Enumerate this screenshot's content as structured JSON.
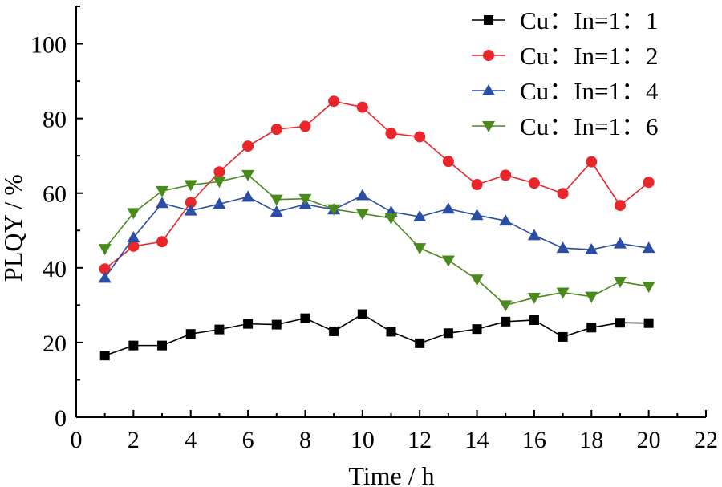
{
  "chart_data": {
    "type": "line",
    "title": "",
    "xlabel": "Time / h",
    "ylabel": "PLQY / %",
    "xlim": [
      0,
      22
    ],
    "ylim": [
      0,
      110
    ],
    "x_ticks": [
      0,
      2,
      4,
      6,
      8,
      10,
      12,
      14,
      16,
      18,
      20,
      22
    ],
    "y_ticks": [
      0,
      20,
      40,
      60,
      80,
      100
    ],
    "grid": false,
    "legend_position": "top-right",
    "x": [
      1,
      2,
      3,
      4,
      5,
      6,
      7,
      8,
      9,
      10,
      11,
      12,
      13,
      14,
      15,
      16,
      17,
      18,
      19,
      20
    ],
    "series": [
      {
        "name": "Cu：In=1：1",
        "color": "#000000",
        "marker": "square",
        "values": [
          16.5,
          19.2,
          19.2,
          22.3,
          23.5,
          25.0,
          24.8,
          26.5,
          23.0,
          27.6,
          22.9,
          19.8,
          22.5,
          23.6,
          25.6,
          26.0,
          21.5,
          24.0,
          25.3,
          25.2
        ]
      },
      {
        "name": "Cu：In=1：2",
        "color": "#e8262c",
        "marker": "circle",
        "values": [
          39.7,
          45.8,
          47.0,
          57.5,
          65.7,
          72.6,
          77.1,
          77.9,
          84.6,
          83.0,
          76.0,
          75.1,
          68.5,
          62.3,
          64.8,
          62.7,
          59.9,
          68.4,
          56.7,
          62.9
        ]
      },
      {
        "name": "Cu：In=1：4",
        "color": "#2a4ea3",
        "marker": "triangle-up",
        "values": [
          37.3,
          48.1,
          57.3,
          55.3,
          57.1,
          59.0,
          55.0,
          57.0,
          55.6,
          59.4,
          55.0,
          53.7,
          55.8,
          54.1,
          52.6,
          48.7,
          45.3,
          44.9,
          46.5,
          45.3
        ]
      },
      {
        "name": "Cu：In=1：6",
        "color": "#4a8a1c",
        "marker": "triangle-down",
        "values": [
          45.1,
          54.7,
          60.6,
          62.2,
          63.1,
          64.9,
          58.3,
          58.5,
          55.7,
          54.5,
          53.3,
          45.3,
          42.0,
          36.9,
          30.0,
          32.0,
          33.4,
          32.3,
          36.3,
          35.0
        ]
      }
    ]
  }
}
